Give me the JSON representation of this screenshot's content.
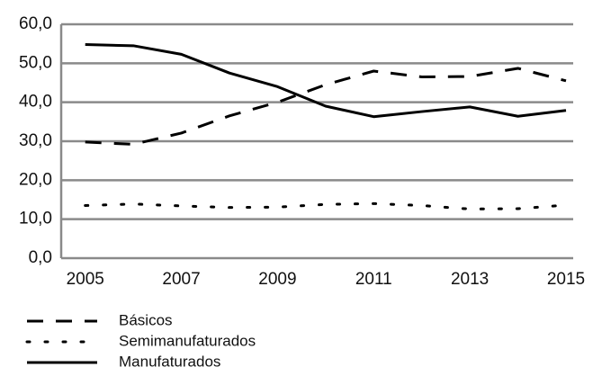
{
  "chart_data": {
    "type": "line",
    "x": [
      2005,
      2006,
      2007,
      2008,
      2009,
      2010,
      2011,
      2012,
      2013,
      2014,
      2015
    ],
    "xlim": [
      2004.5,
      2015.15
    ],
    "xticks": [
      2005,
      2007,
      2009,
      2011,
      2013,
      2015
    ],
    "ylim": [
      0,
      60
    ],
    "yticks": [
      {
        "value": 0,
        "label": "0,0"
      },
      {
        "value": 10,
        "label": "10,0"
      },
      {
        "value": 20,
        "label": "20,0"
      },
      {
        "value": 30,
        "label": "30,0"
      },
      {
        "value": 40,
        "label": "40,0"
      },
      {
        "value": 50,
        "label": "50,0"
      },
      {
        "value": 60,
        "label": "60,0"
      }
    ],
    "grid": true,
    "legend": "bottom-left",
    "series": [
      {
        "name": "Básicos",
        "color": "#000000",
        "dash": "dashed",
        "values": [
          29.8,
          29.2,
          32.1,
          36.5,
          40.0,
          44.5,
          48.0,
          46.5,
          46.6,
          48.7,
          45.5
        ]
      },
      {
        "name": "Semimanufaturados",
        "color": "#000000",
        "dash": "dotted",
        "values": [
          13.5,
          13.9,
          13.4,
          13.0,
          13.1,
          13.8,
          14.0,
          13.5,
          12.6,
          12.7,
          13.6
        ]
      },
      {
        "name": "Manufaturados",
        "color": "#000000",
        "dash": "solid",
        "values": [
          54.8,
          54.5,
          52.3,
          47.5,
          44.0,
          39.0,
          36.3,
          37.6,
          38.8,
          36.4,
          37.9
        ]
      }
    ]
  }
}
